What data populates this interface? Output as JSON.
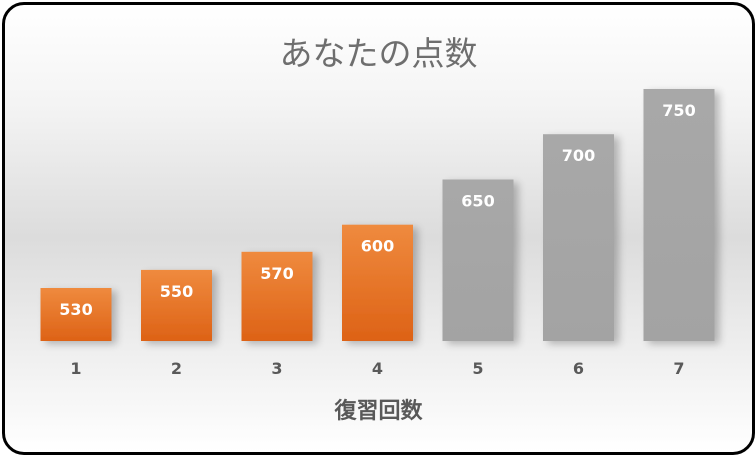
{
  "chart_data": {
    "type": "bar",
    "title": "あなたの点数",
    "xlabel": "復習回数",
    "ylabel": "",
    "categories": [
      "1",
      "2",
      "3",
      "4",
      "5",
      "6",
      "7"
    ],
    "values": [
      530,
      550,
      570,
      600,
      650,
      700,
      750
    ],
    "bar_colors": [
      "#e8702a",
      "#e8702a",
      "#e8702a",
      "#e8702a",
      "#a6a6a6",
      "#a6a6a6",
      "#a6a6a6"
    ],
    "data_labels": true,
    "grid": false,
    "legend": "none"
  }
}
